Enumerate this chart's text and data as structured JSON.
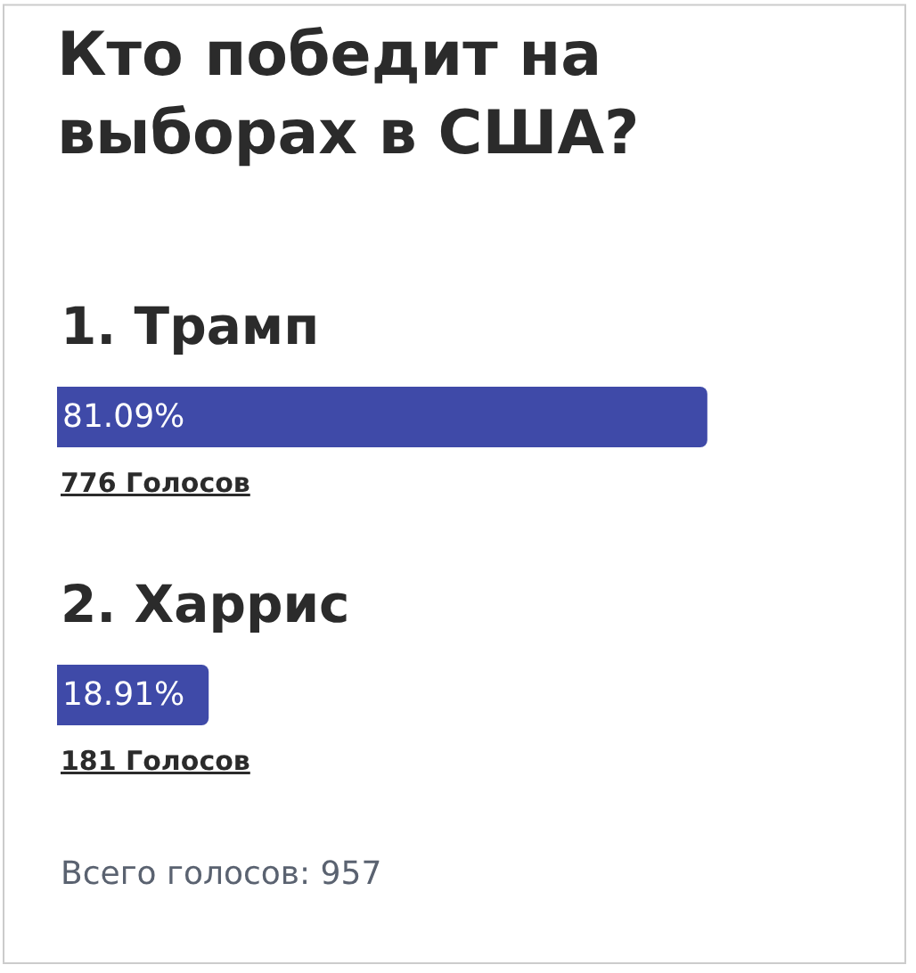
{
  "chart_data": {
    "type": "bar",
    "orientation": "horizontal",
    "title": "Кто победит на выборах в США?",
    "categories": [
      "1. Трамп",
      "2. Харрис"
    ],
    "values": [
      81.09,
      18.91
    ],
    "value_labels": [
      "81.09%",
      "18.91%"
    ],
    "color": "#3f4aa8",
    "tick_labels": false,
    "annotations": [
      {
        "text": "776 Голосов",
        "y": "1. Трамп"
      },
      {
        "text": "181 Голосов",
        "y": "2. Харрис"
      },
      "Всего голосов: 957"
    ]
  }
}
